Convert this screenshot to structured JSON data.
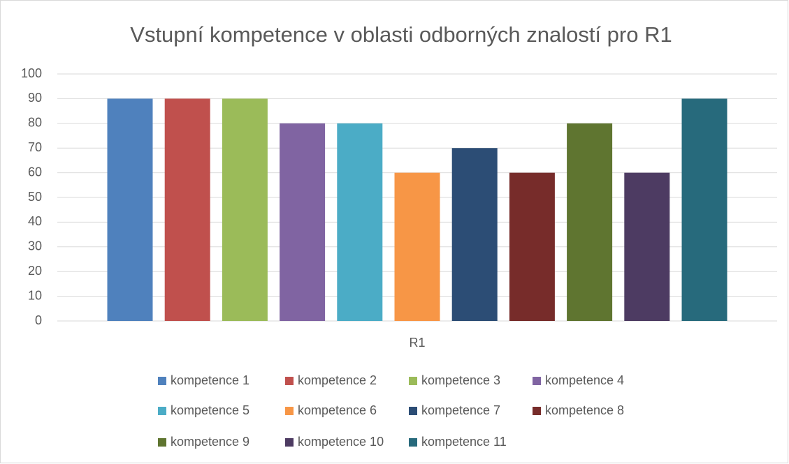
{
  "chart_data": {
    "type": "bar",
    "title": "Vstupní kompetence v oblasti odborných znalostí pro R1",
    "categories": [
      "R1"
    ],
    "series": [
      {
        "name": "kompetence 1",
        "color": "#4f81bd",
        "values": [
          90
        ]
      },
      {
        "name": "kompetence 2",
        "color": "#c0504d",
        "values": [
          90
        ]
      },
      {
        "name": "kompetence 3",
        "color": "#9bbb59",
        "values": [
          90
        ]
      },
      {
        "name": "kompetence 4",
        "color": "#8064a2",
        "values": [
          80
        ]
      },
      {
        "name": "kompetence 5",
        "color": "#4bacc6",
        "values": [
          80
        ]
      },
      {
        "name": "kompetence 6",
        "color": "#f79646",
        "values": [
          60
        ]
      },
      {
        "name": "kompetence 7",
        "color": "#2c4d75",
        "values": [
          70
        ]
      },
      {
        "name": "kompetence 8",
        "color": "#772c2a",
        "values": [
          60
        ]
      },
      {
        "name": "kompetence 9",
        "color": "#5f7530",
        "values": [
          80
        ]
      },
      {
        "name": "kompetence 10",
        "color": "#4d3b62",
        "values": [
          60
        ]
      },
      {
        "name": "kompetence 11",
        "color": "#276a7c",
        "values": [
          90
        ]
      }
    ],
    "ylim": [
      0,
      100
    ],
    "yticks": [
      0,
      10,
      20,
      30,
      40,
      50,
      60,
      70,
      80,
      90,
      100
    ],
    "grid": true,
    "legend": "bottom"
  }
}
